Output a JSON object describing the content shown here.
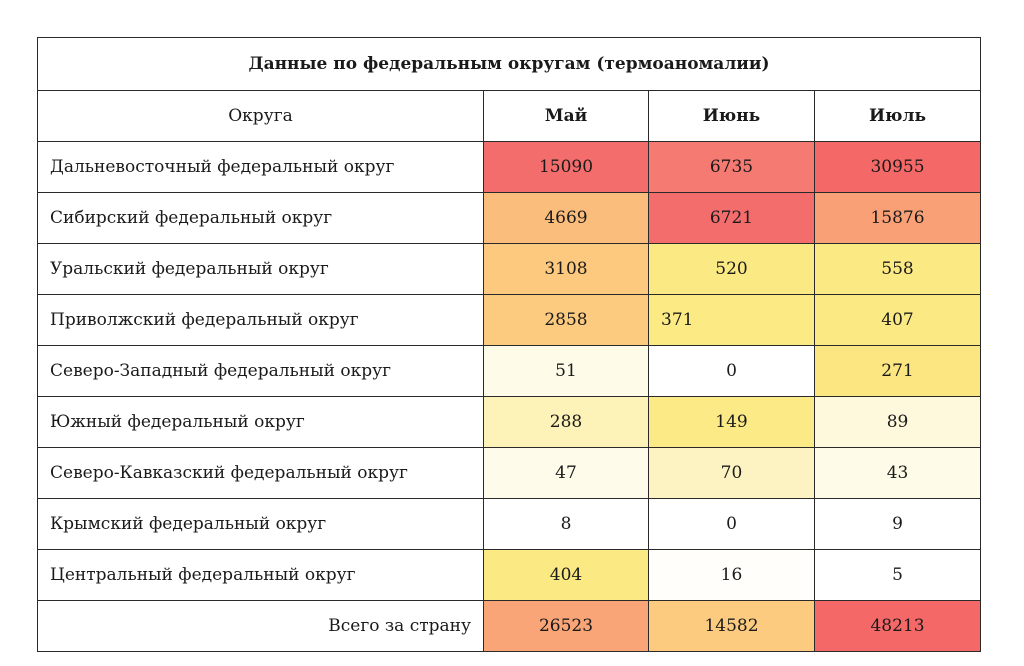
{
  "title": "Данные по федеральным округам (термоаномалии)",
  "header": {
    "district_col": "Округа",
    "months": [
      "Май",
      "Июнь",
      "Июль"
    ]
  },
  "rows": [
    {
      "district": "Дальневосточный федеральный округ",
      "values": [
        "15090",
        "6735",
        "30955"
      ],
      "colors": [
        "#f46d6d",
        "#f57a72",
        "#f46868"
      ]
    },
    {
      "district": "Сибирский федеральный округ",
      "values": [
        "4669",
        "6721",
        "15876"
      ],
      "colors": [
        "#fbbd7c",
        "#f46d6d",
        "#f9a077"
      ]
    },
    {
      "district": "Уральский федеральный округ",
      "values": [
        "3108",
        "520",
        "558"
      ],
      "colors": [
        "#fcc97e",
        "#fbe983",
        "#fbe983"
      ]
    },
    {
      "district": "Приволжский федеральный округ",
      "values": [
        "2858",
        "371",
        "407"
      ],
      "colors": [
        "#fccb7f",
        "#fceb84",
        "#fbe983"
      ]
    },
    {
      "district": "Северо-Западный федеральный округ",
      "values": [
        "51",
        "0",
        "271"
      ],
      "colors": [
        "#fefbe9",
        "#ffffff",
        "#fbe682"
      ]
    },
    {
      "district": "Южный федеральный округ",
      "values": [
        "288",
        "149",
        "89"
      ],
      "colors": [
        "#fdf2b8",
        "#fcea86",
        "#fef9dc"
      ]
    },
    {
      "district": "Северо-Кавказский федеральный округ",
      "values": [
        "47",
        "70",
        "43"
      ],
      "colors": [
        "#fefbeb",
        "#fdf3c2",
        "#fefbe8"
      ]
    },
    {
      "district": "Крымский федеральный округ",
      "values": [
        "8",
        "0",
        "9"
      ],
      "colors": [
        "#ffffff",
        "#ffffff",
        "#ffffff"
      ]
    },
    {
      "district": "Центральный федеральный округ",
      "values": [
        "404",
        "16",
        "5"
      ],
      "colors": [
        "#fbe983",
        "#fffefa",
        "#ffffff"
      ]
    }
  ],
  "total": {
    "label": "Всего за страну",
    "values": [
      "26523",
      "14582",
      "48213"
    ],
    "colors": [
      "#f9a577",
      "#fccb7f",
      "#f46868"
    ]
  }
}
